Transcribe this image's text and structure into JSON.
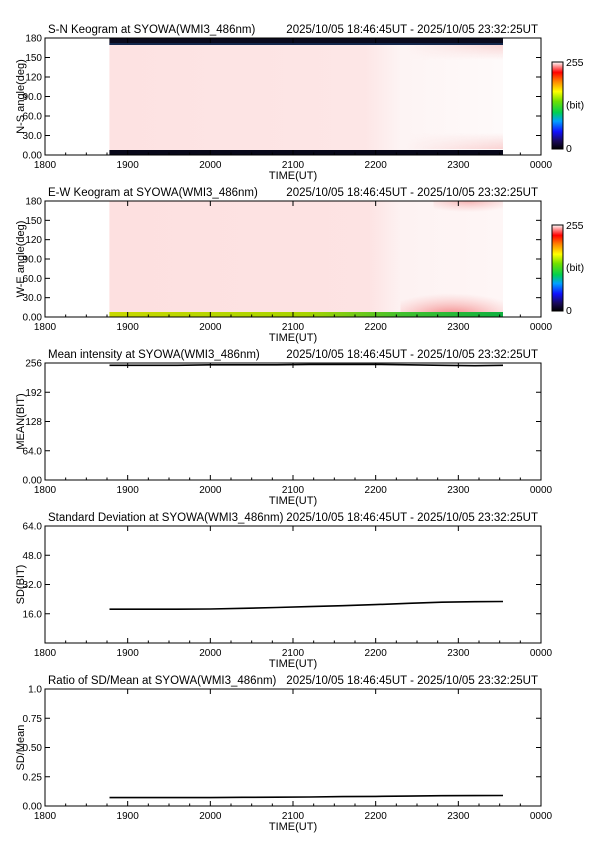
{
  "chart_data": [
    {
      "type": "heatmap",
      "title": "S-N Keogram at SYOWA(WMI3_486nm)",
      "time_range": "2025/10/05 18:46:45UT - 2025/10/05 23:32:25UT",
      "xlabel": "TIME(UT)",
      "ylabel": "N-S angle(deg)",
      "x_ticks": [
        "1800",
        "1900",
        "2000",
        "2100",
        "2200",
        "2300",
        "0000"
      ],
      "y_ticks": [
        "0.00",
        "30.0",
        "60.0",
        "90.0",
        "120",
        "150",
        "180"
      ],
      "xlim": [
        "18:00",
        "24:00"
      ],
      "ylim": [
        0,
        180
      ],
      "data_start": "18:46:45",
      "data_end": "23:32:25",
      "colorbar": {
        "min_label": "0",
        "max_label": "255",
        "unit": "(bit)"
      },
      "description": "Mostly saturated (~255) across all angles; near 0 at the horizons (angle below ~5 and above ~175); slightly lower values near 0-20 deg and 160-180 deg after about 22:00"
    },
    {
      "type": "heatmap",
      "title": "E-W Keogram at SYOWA(WMI3_486nm)",
      "time_range": "2025/10/05 18:46:45UT - 2025/10/05 23:32:25UT",
      "xlabel": "TIME(UT)",
      "ylabel": "W-E angle(deg)",
      "x_ticks": [
        "1800",
        "1900",
        "2000",
        "2100",
        "2200",
        "2300",
        "0000"
      ],
      "y_ticks": [
        "0.00",
        "30.0",
        "60.0",
        "90.0",
        "120",
        "150",
        "180"
      ],
      "xlim": [
        "18:00",
        "24:00"
      ],
      "ylim": [
        0,
        180
      ],
      "data_start": "18:46:45",
      "data_end": "23:32:25",
      "colorbar": {
        "min_label": "0",
        "max_label": "255",
        "unit": "(bit)"
      },
      "description": "Mostly saturated (~255); a low-value band (yellow-green) at angles 0-5 deg; slightly brighter (red) near 0-30 deg and 165-180 deg after about 22:30"
    },
    {
      "type": "line",
      "title": "Mean intensity at SYOWA(WMI3_486nm)",
      "time_range": "2025/10/05 18:46:45UT - 2025/10/05 23:32:25UT",
      "xlabel": "TIME(UT)",
      "ylabel": "MEAN(BIT)",
      "x_ticks": [
        "1800",
        "1900",
        "2000",
        "2100",
        "2200",
        "2300",
        "0000"
      ],
      "y_ticks": [
        "0.00",
        "64.0",
        "128",
        "192",
        "256"
      ],
      "xlim": [
        18,
        24
      ],
      "ylim": [
        0,
        256
      ],
      "x": [
        18.78,
        19.2,
        19.6,
        20.0,
        20.4,
        20.8,
        21.2,
        21.6,
        22.0,
        22.4,
        22.8,
        23.2,
        23.54
      ],
      "y": [
        251,
        251,
        251,
        252,
        252,
        252,
        253,
        253,
        253,
        252,
        251,
        250,
        251
      ]
    },
    {
      "type": "line",
      "title": "Standard Deviation at SYOWA(WMI3_486nm)",
      "time_range": "2025/10/05 18:46:45UT - 2025/10/05 23:32:25UT",
      "xlabel": "TIME(UT)",
      "ylabel": "SD(BIT)",
      "x_ticks": [
        "1800",
        "1900",
        "2000",
        "2100",
        "2200",
        "2300",
        "0000"
      ],
      "y_ticks": [
        "16.0",
        "32.0",
        "48.0",
        "64.0"
      ],
      "xlim": [
        18,
        24
      ],
      "ylim": [
        0,
        64
      ],
      "x": [
        18.78,
        19.2,
        19.6,
        20.0,
        20.4,
        20.8,
        21.2,
        21.6,
        22.0,
        22.4,
        22.8,
        23.2,
        23.54
      ],
      "y": [
        18.5,
        18.5,
        18.5,
        18.6,
        19.0,
        19.4,
        19.9,
        20.4,
        21.0,
        21.7,
        22.3,
        22.6,
        22.7
      ]
    },
    {
      "type": "line",
      "title": "Ratio of SD/Mean at SYOWA(WMI3_486nm)",
      "time_range": "2025/10/05 18:46:45UT - 2025/10/05 23:32:25UT",
      "xlabel": "TIME(UT)",
      "ylabel": "SD/Mean",
      "x_ticks": [
        "1800",
        "1900",
        "2000",
        "2100",
        "2200",
        "2300",
        "0000"
      ],
      "y_ticks": [
        "0.00",
        "0.25",
        "0.50",
        "0.75",
        "1.0"
      ],
      "xlim": [
        18,
        24
      ],
      "ylim": [
        0,
        1
      ],
      "x": [
        18.78,
        19.2,
        19.6,
        20.0,
        20.4,
        20.8,
        21.2,
        21.6,
        22.0,
        22.4,
        22.8,
        23.2,
        23.54
      ],
      "y": [
        0.072,
        0.072,
        0.072,
        0.072,
        0.074,
        0.075,
        0.077,
        0.08,
        0.082,
        0.085,
        0.088,
        0.089,
        0.09
      ]
    }
  ]
}
